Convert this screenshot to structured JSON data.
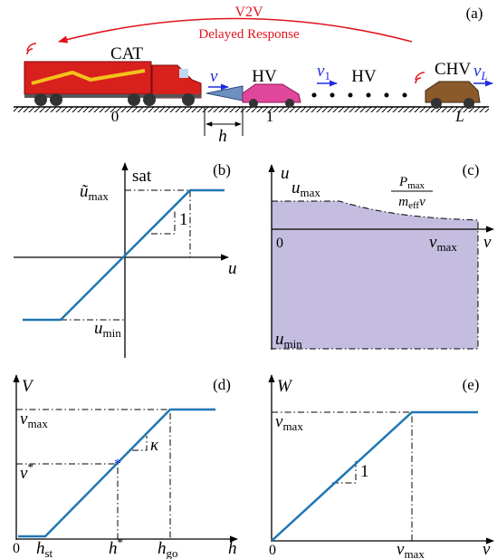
{
  "panel_a": {
    "tag": "(a)",
    "link_label": "V2V",
    "link_note": "Delayed Response",
    "vehicles": [
      "CAT",
      "HV",
      "HV",
      "CHV"
    ],
    "speeds": [
      {
        "base": "v"
      },
      {
        "base": "v",
        "sub": "1"
      },
      {
        "base": "v",
        "sub": "L"
      }
    ],
    "positions": [
      "0",
      "1",
      "L"
    ],
    "gap": "h"
  },
  "panel_b": {
    "tag": "(b)",
    "func": "sat",
    "x_axis": "u",
    "upper": {
      "base": "ũ",
      "sub": "max"
    },
    "lower": {
      "base": "u",
      "sub": "min"
    },
    "slope": "1"
  },
  "panel_c": {
    "tag": "(c)",
    "y_axis": "u",
    "x_axis": "v",
    "origin": "0",
    "upper": {
      "base": "u",
      "sub": "max"
    },
    "lower": {
      "base": "u",
      "sub": "min"
    },
    "x_end": {
      "base": "v",
      "sub": "max"
    },
    "curve": {
      "num_base": "P",
      "num_sub": "max",
      "den_base": "m",
      "den_sub": "eff",
      "den_tail": "v"
    }
  },
  "panel_d": {
    "tag": "(d)",
    "y_axis": "V",
    "x_axis": "h",
    "origin": "0",
    "v_max": {
      "base": "v",
      "sub": "max"
    },
    "v_star": {
      "base": "v",
      "sup": "*"
    },
    "h_st": {
      "base": "h",
      "sub": "st"
    },
    "h_star": {
      "base": "h",
      "sup": "*"
    },
    "h_go": {
      "base": "h",
      "sub": "go"
    },
    "slope": "κ"
  },
  "panel_e": {
    "tag": "(e)",
    "y_axis": "W",
    "x_axis": "v",
    "origin": "0",
    "v_max_y": {
      "base": "v",
      "sub": "max"
    },
    "v_max_x": {
      "base": "v",
      "sub": "max"
    },
    "slope": "1"
  }
}
